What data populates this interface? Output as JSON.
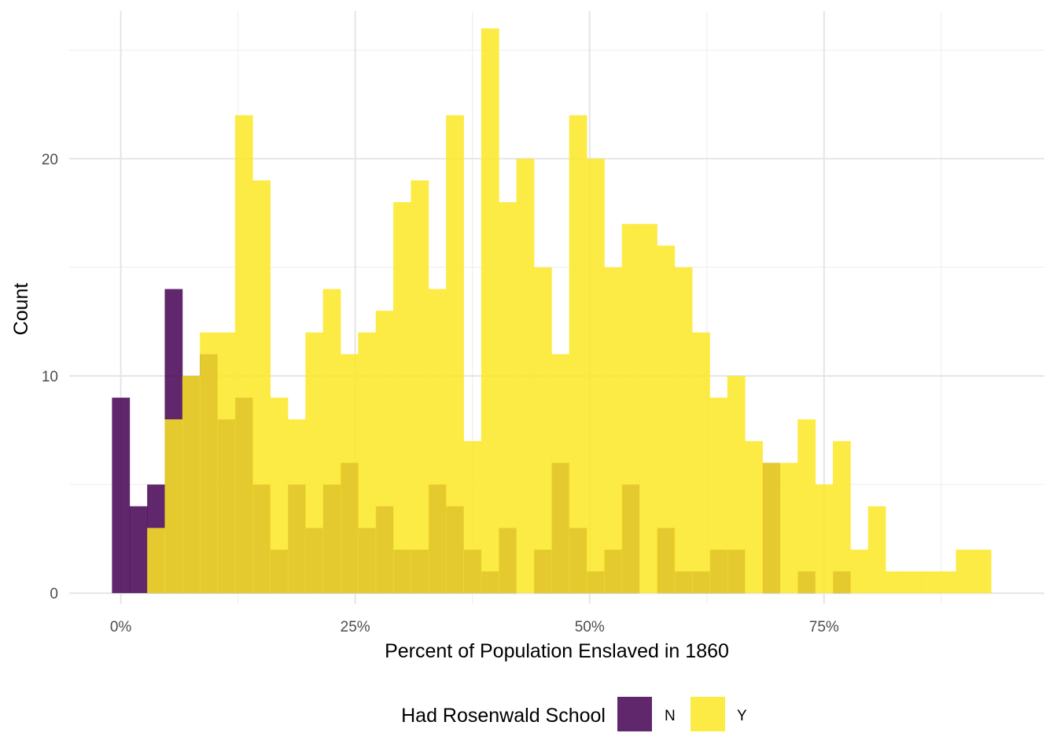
{
  "chart_data": {
    "type": "bar",
    "subtype": "overlaid-histogram",
    "title": "",
    "xlabel": "Percent of Population Enslaved in 1860",
    "ylabel": "Count",
    "x_tick_labels": [
      "0%",
      "25%",
      "50%",
      "75%"
    ],
    "x_tick_values": [
      0,
      0.25,
      0.5,
      0.75
    ],
    "y_tick_labels": [
      "0",
      "10",
      "20"
    ],
    "y_tick_values": [
      0,
      10,
      20
    ],
    "xlim": [
      -0.055,
      0.985
    ],
    "ylim": [
      -0.5,
      26.8
    ],
    "grid": true,
    "bin_width": 0.01875,
    "first_bin_center": 0,
    "legend": {
      "title": "Had Rosenwald School",
      "position": "bottom"
    },
    "series": [
      {
        "name": "N",
        "color": "#440154",
        "opacity": 0.85,
        "values": [
          9,
          4,
          5,
          14,
          10,
          11,
          8,
          9,
          5,
          2,
          5,
          3,
          5,
          6,
          3,
          4,
          2,
          2,
          5,
          4,
          2,
          1,
          3,
          0,
          2,
          6,
          3,
          1,
          2,
          5,
          0,
          3,
          1,
          1,
          2,
          2,
          0,
          6,
          0,
          1,
          0,
          1,
          0,
          0,
          0,
          0,
          0,
          0,
          0,
          0,
          0,
          0,
          0,
          0,
          0,
          0,
          0,
          0,
          0,
          0
        ]
      },
      {
        "name": "Y",
        "color": "#FDE725",
        "opacity": 0.85,
        "values": [
          0,
          0,
          3,
          8,
          10,
          12,
          12,
          22,
          19,
          9,
          8,
          12,
          14,
          11,
          12,
          13,
          18,
          19,
          14,
          22,
          7,
          26,
          18,
          20,
          15,
          11,
          22,
          20,
          15,
          17,
          17,
          16,
          15,
          12,
          9,
          10,
          7,
          6,
          6,
          8,
          5,
          7,
          2,
          4,
          1,
          1,
          1,
          1,
          2,
          2
        ]
      }
    ]
  }
}
